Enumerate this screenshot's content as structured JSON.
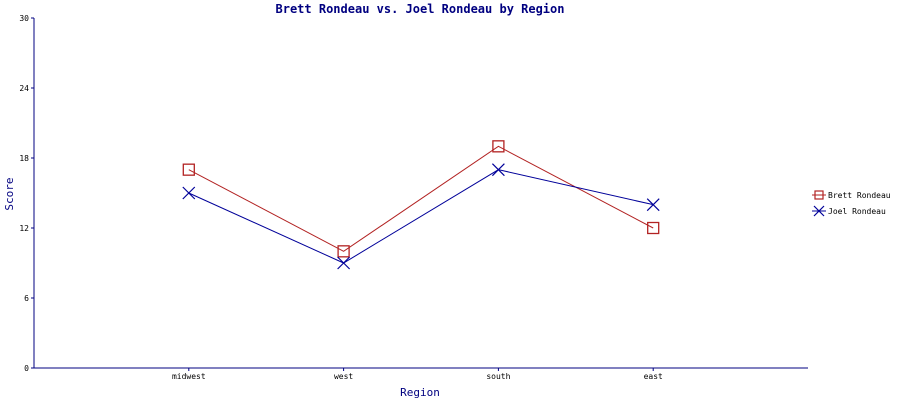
{
  "chart_data": {
    "type": "line",
    "title": "Brett Rondeau vs. Joel Rondeau by Region",
    "xlabel": "Region",
    "ylabel": "Score",
    "categories": [
      "midwest",
      "west",
      "south",
      "east"
    ],
    "ylim": [
      0,
      30
    ],
    "yticks": [
      0,
      6,
      12,
      18,
      24,
      30
    ],
    "grid": false,
    "legend_position": "right",
    "series": [
      {
        "name": "Brett Rondeau",
        "values": [
          17,
          10,
          19,
          12
        ],
        "color": "#b22222",
        "marker": "square"
      },
      {
        "name": "Joel Rondeau",
        "values": [
          15,
          9,
          17,
          14
        ],
        "color": "#000099",
        "marker": "x"
      }
    ],
    "axis_color": "#000080"
  }
}
